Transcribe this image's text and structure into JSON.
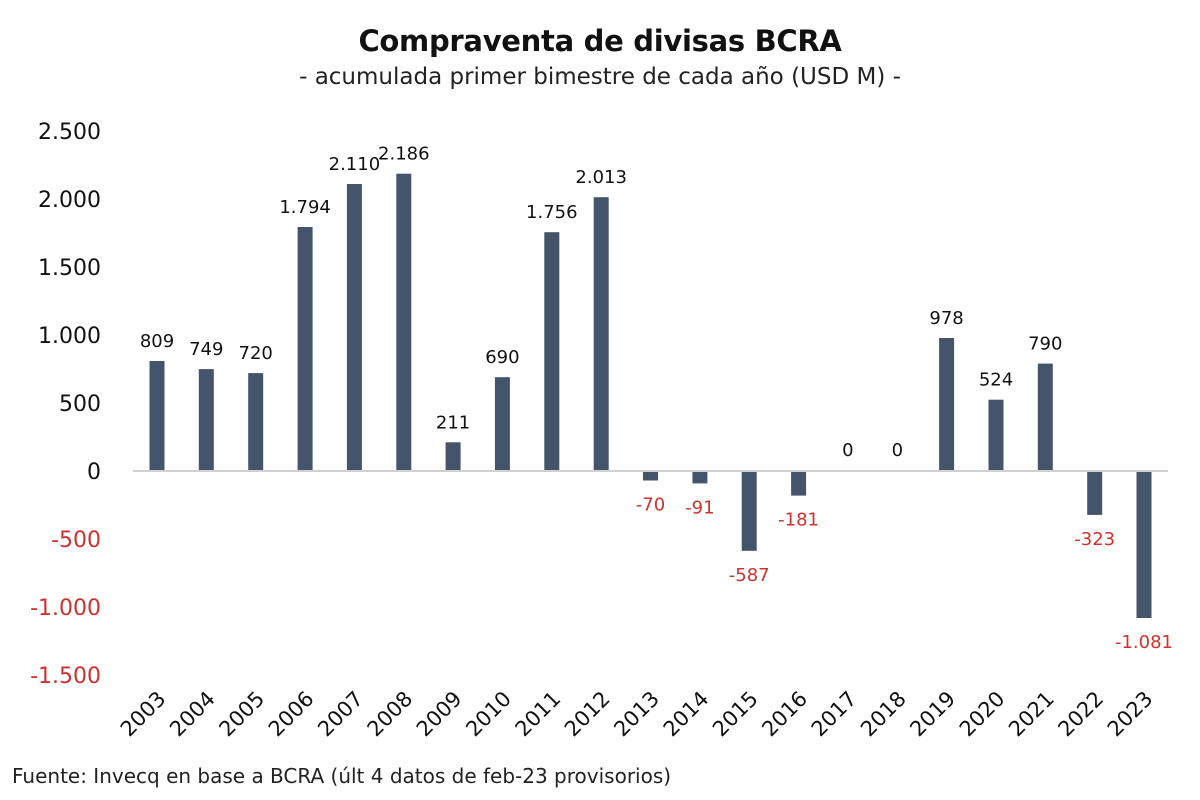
{
  "chart_data": {
    "type": "bar",
    "title": "Compraventa de divisas BCRA",
    "subtitle": "- acumulada primer bimestre de cada año (USD M) -",
    "source": "Fuente: Invecq en base a BCRA (últ 4 datos de feb-23 provisorios)",
    "xlabel": "",
    "ylabel": "",
    "ylim": [
      -1500,
      2500
    ],
    "yticks": [
      2500,
      2000,
      1500,
      1000,
      500,
      0,
      -500,
      -1000,
      -1500
    ],
    "ytick_labels": [
      "2.500",
      "2.000",
      "1.500",
      "1.000",
      "500",
      "0",
      "-500",
      "-1.000",
      "-1.500"
    ],
    "grid": false,
    "legend": "none",
    "categories": [
      "2003",
      "2004",
      "2005",
      "2006",
      "2007",
      "2008",
      "2009",
      "2010",
      "2011",
      "2012",
      "2013",
      "2014",
      "2015",
      "2016",
      "2017",
      "2018",
      "2019",
      "2020",
      "2021",
      "2022",
      "2023"
    ],
    "values": [
      809,
      749,
      720,
      1794,
      2110,
      2186,
      211,
      690,
      1756,
      2013,
      -70,
      -91,
      -587,
      -181,
      0,
      0,
      978,
      524,
      790,
      -323,
      -1081
    ],
    "value_labels": [
      "809",
      "749",
      "720",
      "1.794",
      "2.110",
      "2.186",
      "211",
      "690",
      "1.756",
      "2.013",
      "-70",
      "-91",
      "-587",
      "-181",
      "0",
      "0",
      "978",
      "524",
      "790",
      "-323",
      "-1.081"
    ],
    "colors": {
      "bar": "#44546a",
      "positive_text": "#111111",
      "negative_text": "#d0312d",
      "axis_line": "#d0d0d0"
    }
  }
}
